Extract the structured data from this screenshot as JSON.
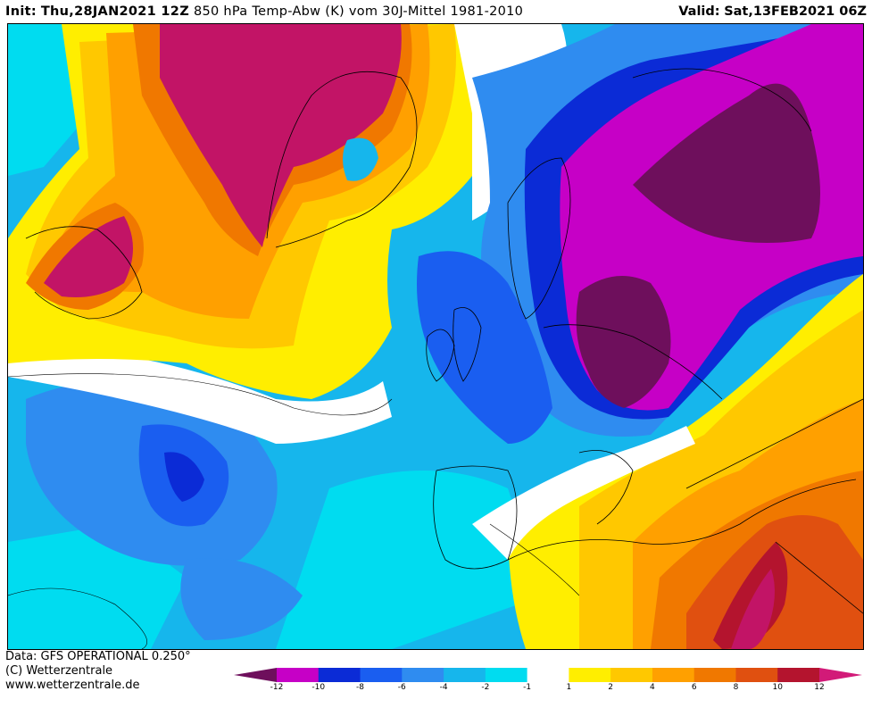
{
  "header": {
    "init_label": "Init:",
    "init_value": "Thu,28JAN2021 12Z",
    "title": "850 hPa Temp-Abw (K) vom 30J-Mittel 1981-2010",
    "valid_label": "Valid:",
    "valid_value": "Sat,13FEB2021 06Z"
  },
  "footer": {
    "line1": "Data: GFS OPERATIONAL 0.250°",
    "line2": "(C) Wetterzentrale",
    "line3": "www.wetterzentrale.de"
  },
  "legend": {
    "ticks": [
      "-12",
      "-10",
      "-8",
      "-6",
      "-4",
      "-2",
      "-1",
      "1",
      "2",
      "4",
      "6",
      "8",
      "10",
      "12"
    ],
    "colors": [
      "#6e0f5c",
      "#c600c6",
      "#0b2bd6",
      "#1a5ef0",
      "#2f8cf0",
      "#16b6ec",
      "#00dcf0",
      "#ffffff",
      "#ffee00",
      "#ffc800",
      "#ffa000",
      "#f07800",
      "#e05010",
      "#b4142e",
      "#d21a78"
    ]
  },
  "map_colors": {
    "deep_purple": "#6e0f5c",
    "magenta": "#c600c6",
    "dark_blue": "#0b2bd6",
    "blue": "#1a5ef0",
    "mid_blue": "#2f8cf0",
    "light_blue": "#16b6ec",
    "cyan": "#00dcf0",
    "white": "#ffffff",
    "yellow": "#ffee00",
    "orange_yellow": "#ffc800",
    "orange": "#ffa000",
    "dark_orange": "#f07800",
    "red_orange": "#e05010",
    "crimson": "#b4142e",
    "raspberry": "#c21466"
  }
}
